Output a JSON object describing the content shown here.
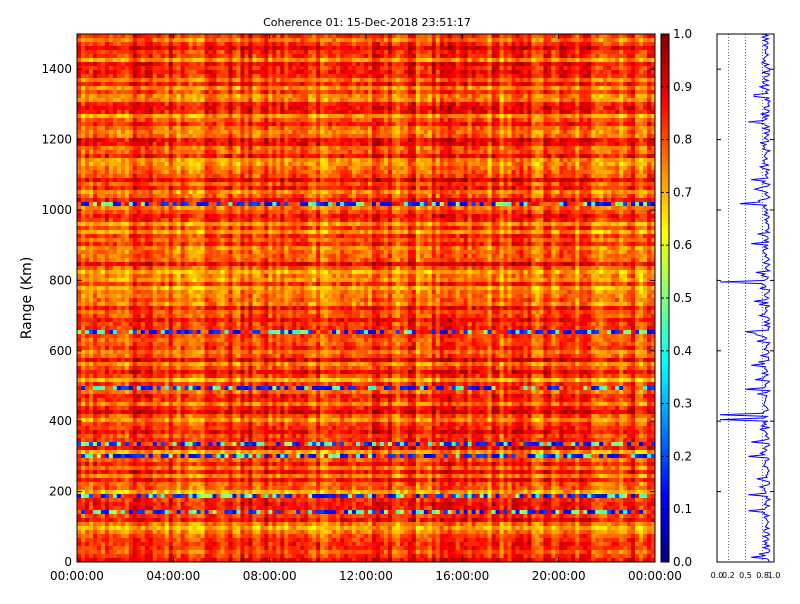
{
  "chart_data": [
    {
      "type": "heatmap",
      "title": "Coherence 01: 15-Dec-2018 23:51:17",
      "xlabel": "",
      "ylabel": "Range (Km)",
      "x_range": [
        "00:00:00",
        "24:00:00"
      ],
      "x_ticks": [
        "00:00:00",
        "04:00:00",
        "08:00:00",
        "12:00:00",
        "16:00:00",
        "20:00:00",
        "00:00:00"
      ],
      "ylim": [
        0,
        1500
      ],
      "y_ticks": [
        "0",
        "200",
        "400",
        "600",
        "800",
        "1000",
        "1200",
        "1400"
      ],
      "colormap": "jet",
      "colorbar": {
        "range": [
          0.0,
          1.0
        ],
        "ticks": [
          "0.0",
          "0.1",
          "0.2",
          "0.3",
          "0.4",
          "0.5",
          "0.6",
          "0.7",
          "0.8",
          "0.9",
          "1.0"
        ]
      },
      "dominant_value_range": [
        0.7,
        0.9
      ],
      "low_coherence_ranges_km": [
        145,
        190,
        300,
        340,
        490,
        655,
        1020
      ]
    },
    {
      "type": "line",
      "title": "",
      "xlim": [
        0.0,
        1.0
      ],
      "x_ticks": [
        "0.0",
        "0.2",
        "0.5",
        "0.8",
        "1.0"
      ],
      "ylim": [
        0,
        1500
      ],
      "grid": true,
      "color": "#0000ff",
      "dips": [
        {
          "range_km": 15,
          "value": 0.6
        },
        {
          "range_km": 145,
          "value": 0.55
        },
        {
          "range_km": 190,
          "value": 0.55
        },
        {
          "range_km": 300,
          "value": 0.55
        },
        {
          "range_km": 340,
          "value": 0.6
        },
        {
          "range_km": 405,
          "value": 0.05
        },
        {
          "range_km": 420,
          "value": 0.05
        },
        {
          "range_km": 490,
          "value": 0.5
        },
        {
          "range_km": 560,
          "value": 0.6
        },
        {
          "range_km": 655,
          "value": 0.5
        },
        {
          "range_km": 795,
          "value": 0.05
        },
        {
          "range_km": 905,
          "value": 0.6
        },
        {
          "range_km": 1020,
          "value": 0.4
        },
        {
          "range_km": 1085,
          "value": 0.6
        },
        {
          "range_km": 1250,
          "value": 0.55
        },
        {
          "range_km": 1325,
          "value": 0.65
        }
      ]
    }
  ]
}
